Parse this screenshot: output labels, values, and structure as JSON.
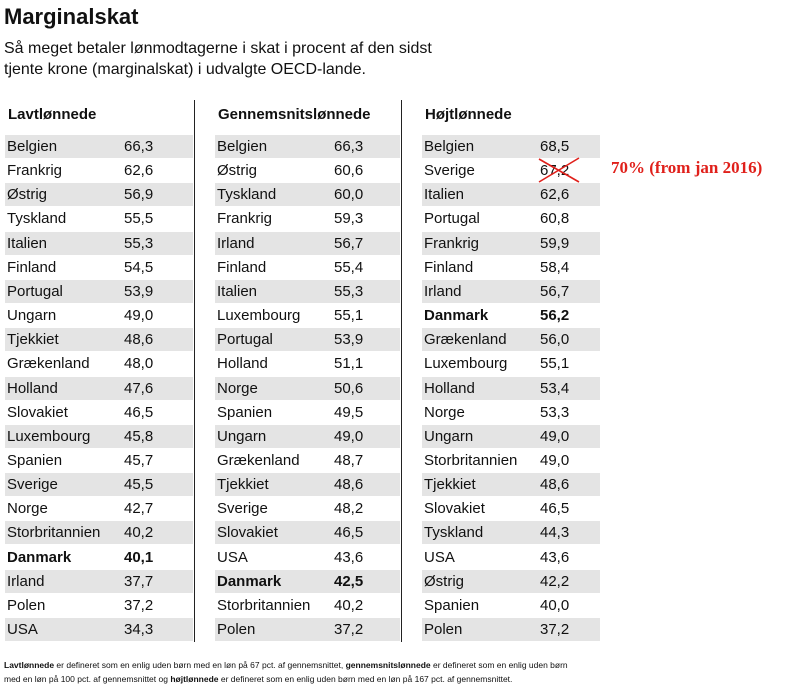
{
  "header": {
    "title": "Marginalskat",
    "subtitle": [
      "Så meget betaler lønmodtagerne i skat i procent af den sidst",
      "tjente krone (marginalskat) i udvalgte OECD-lande."
    ]
  },
  "table": {
    "columns": [
      {
        "header": "Lavtlønnede",
        "highlight_row": 17,
        "rows": [
          [
            "Belgien",
            "66,3"
          ],
          [
            "Frankrig",
            "62,6"
          ],
          [
            "Østrig",
            "56,9"
          ],
          [
            "Tyskland",
            "55,5"
          ],
          [
            "Italien",
            "55,3"
          ],
          [
            "Finland",
            "54,5"
          ],
          [
            "Portugal",
            "53,9"
          ],
          [
            "Ungarn",
            "49,0"
          ],
          [
            "Tjekkiet",
            "48,6"
          ],
          [
            "Grækenland",
            "48,0"
          ],
          [
            "Holland",
            "47,6"
          ],
          [
            "Slovakiet",
            "46,5"
          ],
          [
            "Luxembourg",
            "45,8"
          ],
          [
            "Spanien",
            "45,7"
          ],
          [
            "Sverige",
            "45,5"
          ],
          [
            "Norge",
            "42,7"
          ],
          [
            "Storbritannien",
            "40,2"
          ],
          [
            "Danmark",
            "40,1"
          ],
          [
            "Irland",
            "37,7"
          ],
          [
            "Polen",
            "37,2"
          ],
          [
            "USA",
            "34,3"
          ]
        ]
      },
      {
        "header": "Gennemsnitslønnede",
        "highlight_row": 18,
        "rows": [
          [
            "Belgien",
            "66,3"
          ],
          [
            "Østrig",
            "60,6"
          ],
          [
            "Tyskland",
            "60,0"
          ],
          [
            "Frankrig",
            "59,3"
          ],
          [
            "Irland",
            "56,7"
          ],
          [
            "Finland",
            "55,4"
          ],
          [
            "Italien",
            "55,3"
          ],
          [
            "Luxembourg",
            "55,1"
          ],
          [
            "Portugal",
            "53,9"
          ],
          [
            "Holland",
            "51,1"
          ],
          [
            "Norge",
            "50,6"
          ],
          [
            "Spanien",
            "49,5"
          ],
          [
            "Ungarn",
            "49,0"
          ],
          [
            "Grækenland",
            "48,7"
          ],
          [
            "Tjekkiet",
            "48,6"
          ],
          [
            "Sverige",
            "48,2"
          ],
          [
            "Slovakiet",
            "46,5"
          ],
          [
            "USA",
            "43,6"
          ],
          [
            "Danmark",
            "42,5"
          ],
          [
            "Storbritannien",
            "40,2"
          ],
          [
            "Polen",
            "37,2"
          ]
        ]
      },
      {
        "header": "Højtlønnede",
        "highlight_row": 7,
        "rows": [
          [
            "Belgien",
            "68,5"
          ],
          [
            "Sverige",
            "67,2"
          ],
          [
            "Italien",
            "62,6"
          ],
          [
            "Portugal",
            "60,8"
          ],
          [
            "Frankrig",
            "59,9"
          ],
          [
            "Finland",
            "58,4"
          ],
          [
            "Irland",
            "56,7"
          ],
          [
            "Danmark",
            "56,2"
          ],
          [
            "Grækenland",
            "56,0"
          ],
          [
            "Luxembourg",
            "55,1"
          ],
          [
            "Holland",
            "53,4"
          ],
          [
            "Norge",
            "53,3"
          ],
          [
            "Ungarn",
            "49,0"
          ],
          [
            "Storbritannien",
            "49,0"
          ],
          [
            "Tjekkiet",
            "48,6"
          ],
          [
            "Slovakiet",
            "46,5"
          ],
          [
            "Tyskland",
            "44,3"
          ],
          [
            "USA",
            "43,6"
          ],
          [
            "Østrig",
            "42,2"
          ],
          [
            "Spanien",
            "40,0"
          ],
          [
            "Polen",
            "37,2"
          ]
        ]
      }
    ]
  },
  "annotation": {
    "column": 2,
    "row": 1,
    "text": "70% (from jan 2016)",
    "color": "#e0201b"
  },
  "footnote": {
    "lines": [
      [
        {
          "text": "Lavtlønnede",
          "bold": true
        },
        {
          "text": " er defineret som en enlig uden børn med en løn på 67 pct. af gennemsnittet, ",
          "bold": false
        },
        {
          "text": "gennemsnitslønnede",
          "bold": true
        },
        {
          "text": " er defineret som en enlig uden børn",
          "bold": false
        }
      ],
      [
        {
          "text": "med en løn på 100 pct. af gennemsnittet og ",
          "bold": false
        },
        {
          "text": "højtlønnede",
          "bold": true
        },
        {
          "text": " er defineret som en enlig uden børn med en løn på 167 pct. af gennemsnittet.",
          "bold": false
        }
      ]
    ]
  }
}
